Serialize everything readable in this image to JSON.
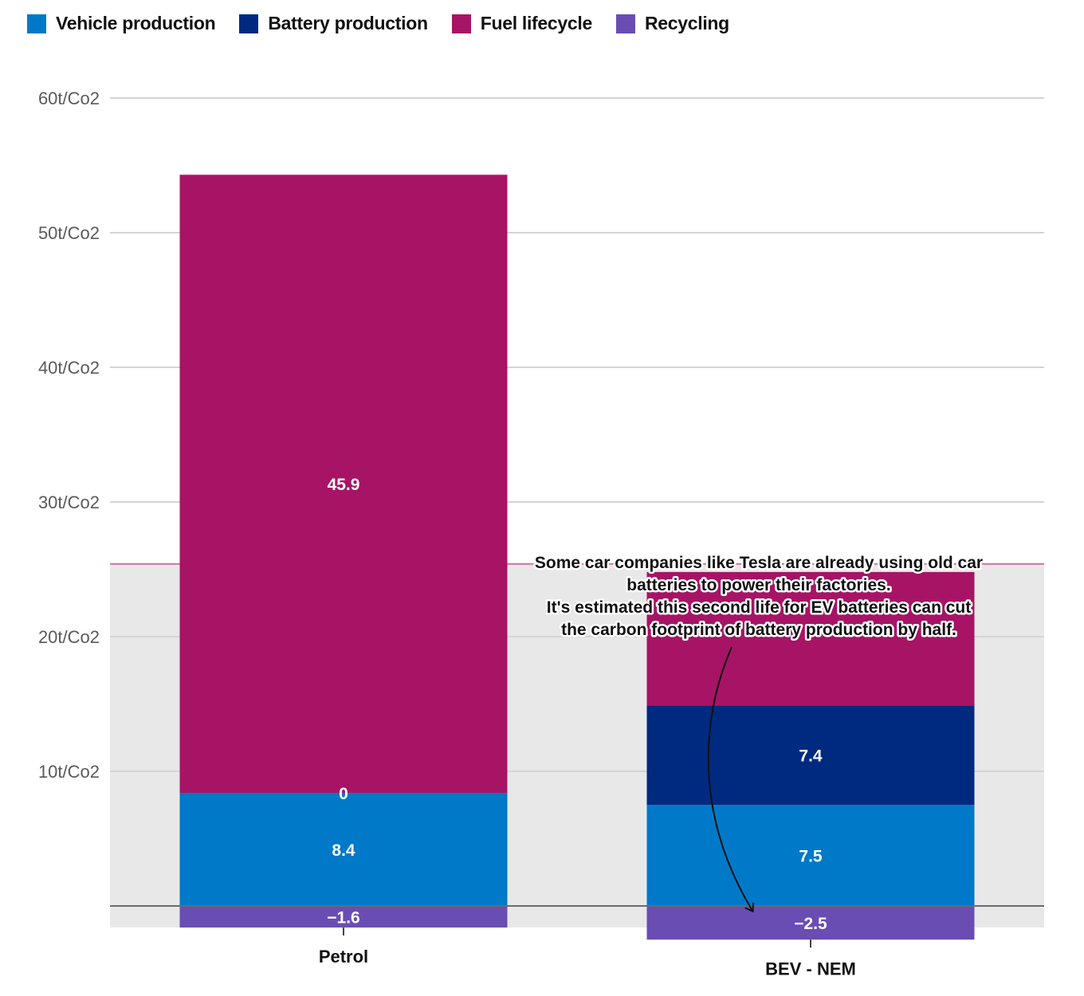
{
  "chart_data": {
    "type": "bar",
    "stacked": true,
    "title": "",
    "xlabel": "",
    "ylabel": "",
    "ylim": [
      -3,
      60
    ],
    "y_ticks": [
      10,
      20,
      30,
      40,
      50,
      60
    ],
    "y_tick_labels": [
      "10t/Co2",
      "20t/Co2",
      "30t/Co2",
      "40t/Co2",
      "50t/Co2",
      "60t/Co2"
    ],
    "grid": true,
    "legend_position": "top-left",
    "categories": [
      "Petrol",
      "BEV - NEM"
    ],
    "series": [
      {
        "name": "Vehicle production",
        "color": "#0079c8",
        "values": [
          8.4,
          7.5
        ],
        "labels": [
          "8.4",
          "7.5"
        ]
      },
      {
        "name": "Battery production",
        "color": "#002a7f",
        "values": [
          0,
          7.4
        ],
        "labels": [
          "0",
          "7.4"
        ]
      },
      {
        "name": "Fuel lifecycle",
        "color": "#a71465",
        "values": [
          45.9,
          9.9
        ],
        "labels": [
          "45.9",
          ""
        ]
      },
      {
        "name": "Recycling",
        "color": "#6a4db3",
        "values": [
          -1.6,
          -2.5
        ],
        "labels": [
          "−1.6",
          "−2.5"
        ]
      }
    ],
    "highlight_band": {
      "from": -1.6,
      "to": 25.4,
      "fill": "#e8e8e8",
      "top_line_color": "#d36fa4"
    },
    "annotation": {
      "lines": [
        "Some car companies like Tesla are already using old car",
        "batteries to power their factories.",
        "It's estimated this second life for EV batteries can cut",
        "the carbon footprint of battery production by half."
      ],
      "arrow_target": "BEV - NEM recycling"
    }
  },
  "legend": [
    {
      "label": "Vehicle production",
      "color": "#0079c8"
    },
    {
      "label": "Battery production",
      "color": "#002a7f"
    },
    {
      "label": "Fuel lifecycle",
      "color": "#a71465"
    },
    {
      "label": "Recycling",
      "color": "#6a4db3"
    }
  ]
}
